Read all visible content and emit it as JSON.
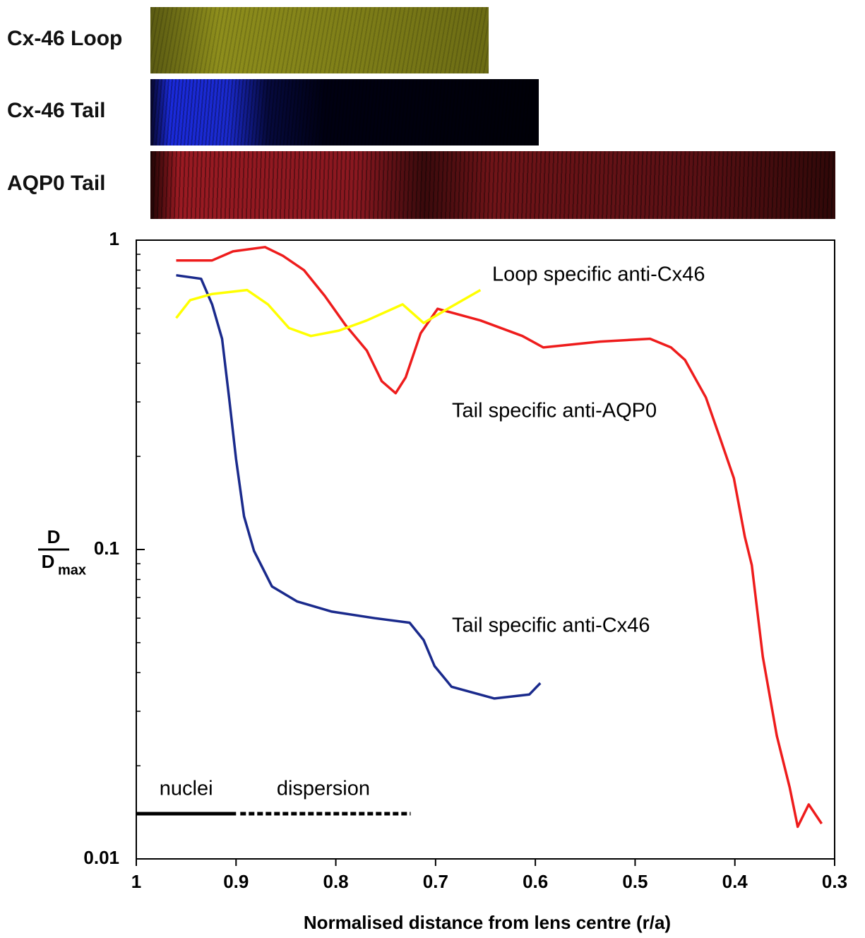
{
  "panels": [
    "Cx-46 Loop",
    "Cx-46 Tail",
    "AQP0 Tail"
  ],
  "chart_data": {
    "type": "line",
    "xlabel": "Normalised distance from lens centre (r/a)",
    "ylabel": {
      "numerator": "D",
      "denominator": "D",
      "subscript": "max"
    },
    "log_y": true,
    "xlim": [
      1,
      0.3
    ],
    "xticks": [
      1,
      0.9,
      0.8,
      0.7,
      0.6,
      0.5,
      0.4,
      0.3
    ],
    "ylim": [
      0.01,
      1
    ],
    "yticks": [
      1,
      0.1,
      0.01
    ],
    "yminorticks": [
      0.02,
      0.03,
      0.04,
      0.05,
      0.06,
      0.07,
      0.08,
      0.09,
      0.2,
      0.3,
      0.4,
      0.5,
      0.6,
      0.7,
      0.8,
      0.9
    ],
    "series": [
      {
        "name": "Tail specific anti-AQP0",
        "color": "#ee1c1c",
        "x": [
          0.96,
          0.924,
          0.903,
          0.871,
          0.853,
          0.832,
          0.811,
          0.79,
          0.769,
          0.754,
          0.74,
          0.73,
          0.715,
          0.698,
          0.655,
          0.613,
          0.592,
          0.535,
          0.485,
          0.464,
          0.45,
          0.429,
          0.415,
          0.401,
          0.39,
          0.383,
          0.372,
          0.358,
          0.345,
          0.337,
          0.326,
          0.313
        ],
        "values": [
          0.86,
          0.86,
          0.92,
          0.95,
          0.89,
          0.8,
          0.66,
          0.53,
          0.44,
          0.35,
          0.32,
          0.36,
          0.5,
          0.6,
          0.55,
          0.49,
          0.45,
          0.47,
          0.48,
          0.45,
          0.41,
          0.31,
          0.23,
          0.17,
          0.11,
          0.089,
          0.045,
          0.025,
          0.017,
          0.0127,
          0.015,
          0.013
        ]
      },
      {
        "name": "Tail specific anti-Cx46",
        "color": "#1a2a8c",
        "x": [
          0.96,
          0.935,
          0.924,
          0.914,
          0.907,
          0.9,
          0.892,
          0.882,
          0.864,
          0.839,
          0.804,
          0.761,
          0.726,
          0.712,
          0.701,
          0.684,
          0.641,
          0.606,
          0.595
        ],
        "values": [
          0.77,
          0.75,
          0.62,
          0.48,
          0.31,
          0.196,
          0.128,
          0.099,
          0.076,
          0.068,
          0.063,
          0.06,
          0.058,
          0.051,
          0.042,
          0.036,
          0.033,
          0.034,
          0.037
        ]
      },
      {
        "name": "Loop specific anti-Cx46",
        "color": "#ffff00",
        "x": [
          0.96,
          0.946,
          0.924,
          0.889,
          0.868,
          0.847,
          0.825,
          0.797,
          0.769,
          0.733,
          0.712,
          0.684,
          0.655
        ],
        "values": [
          0.56,
          0.64,
          0.67,
          0.69,
          0.62,
          0.52,
          0.49,
          0.51,
          0.55,
          0.62,
          0.54,
          0.61,
          0.69
        ]
      }
    ],
    "ranges": [
      {
        "label": "nuclei",
        "x": [
          1,
          0.9
        ],
        "y": 0.014,
        "style": "solid"
      },
      {
        "label": "dispersion",
        "x": [
          0.9,
          0.725
        ],
        "y": 0.014,
        "style": "dashed"
      }
    ]
  }
}
